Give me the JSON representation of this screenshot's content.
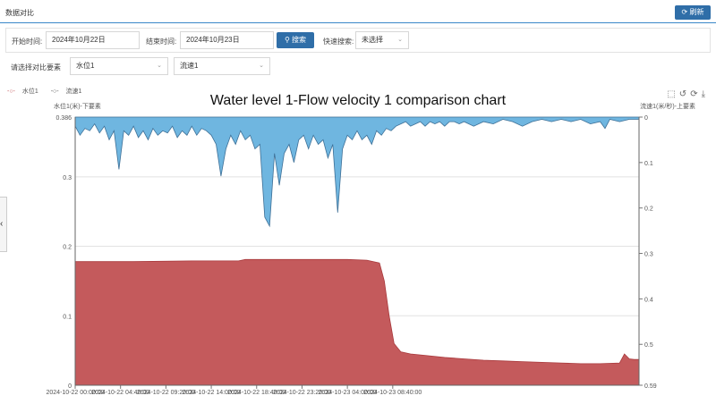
{
  "header": {
    "title": "数据对比",
    "refresh_label": "刷新"
  },
  "filters": {
    "start_label": "开始时间:",
    "start_value": "2024年10月22日",
    "end_label": "结束时间:",
    "end_value": "2024年10月23日",
    "search_label": "搜索",
    "quick_label": "快速搜索:",
    "quick_value": "未选择",
    "compare_label": "请选择对比要素",
    "element1": "水位1",
    "element2": "流速1"
  },
  "colors": {
    "blue_fill": "#6fb6e0",
    "red_fill": "#c45a5c",
    "accent": "#2f6ea8"
  },
  "icons": [
    "rect-select-icon",
    "restore-icon",
    "refresh-icon",
    "download-icon"
  ],
  "chart_data": {
    "type": "area",
    "title": "Water level 1-Flow velocity 1 comparison chart",
    "legend": [
      "水位1",
      "流速1"
    ],
    "left_axis": {
      "label": "水位1(米)-下要素",
      "ticks": [
        "0.386",
        "0.3",
        "0.2",
        "0.1",
        "0"
      ],
      "range": [
        0,
        0.386
      ]
    },
    "right_axis": {
      "label": "流速1(米/秒)-上要素",
      "ticks": [
        "0",
        "0.1",
        "0.2",
        "0.3",
        "0.4",
        "0.5",
        "0.59"
      ],
      "range": [
        0,
        0.59
      ],
      "inverted": true
    },
    "x_ticks": [
      "2024-10-22 00:00:00",
      "2024-10-22 04:40:00",
      "2024-10-22 09:20:00",
      "2024-10-22 14:00:00",
      "2024-10-22 18:40:00",
      "2024-10-22 23:20:00",
      "2024-10-23 04:00:00",
      "2024-10-23 08:40:00"
    ],
    "series": [
      {
        "name": "水位1",
        "values": [
          [
            0,
            0.178
          ],
          [
            6,
            0.178
          ],
          [
            12,
            0.179
          ],
          [
            16.8,
            0.179
          ],
          [
            17.5,
            0.181
          ],
          [
            21,
            0.181
          ],
          [
            28,
            0.181
          ],
          [
            30,
            0.18
          ],
          [
            31.3,
            0.176
          ],
          [
            31.8,
            0.15
          ],
          [
            32.3,
            0.1
          ],
          [
            32.8,
            0.06
          ],
          [
            33.5,
            0.048
          ],
          [
            34.5,
            0.045
          ],
          [
            36,
            0.043
          ],
          [
            38,
            0.04
          ],
          [
            40,
            0.038
          ],
          [
            42,
            0.036
          ],
          [
            44,
            0.035
          ],
          [
            46,
            0.034
          ],
          [
            48,
            0.033
          ],
          [
            50,
            0.032
          ],
          [
            52,
            0.031
          ],
          [
            54,
            0.031
          ],
          [
            56,
            0.032
          ],
          [
            56.5,
            0.045
          ],
          [
            57,
            0.038
          ],
          [
            57.5,
            0.037
          ],
          [
            58,
            0.037
          ]
        ]
      },
      {
        "name": "流速1",
        "values": [
          [
            0,
            0.02
          ],
          [
            0.5,
            0.04
          ],
          [
            1,
            0.025
          ],
          [
            1.5,
            0.03
          ],
          [
            2,
            0.015
          ],
          [
            2.5,
            0.035
          ],
          [
            3,
            0.02
          ],
          [
            3.5,
            0.05
          ],
          [
            4,
            0.03
          ],
          [
            4.5,
            0.115
          ],
          [
            5,
            0.03
          ],
          [
            5.5,
            0.04
          ],
          [
            6,
            0.02
          ],
          [
            6.5,
            0.045
          ],
          [
            7,
            0.03
          ],
          [
            7.5,
            0.05
          ],
          [
            8,
            0.025
          ],
          [
            8.5,
            0.04
          ],
          [
            9,
            0.03
          ],
          [
            9.5,
            0.035
          ],
          [
            10,
            0.02
          ],
          [
            10.5,
            0.045
          ],
          [
            11,
            0.03
          ],
          [
            11.5,
            0.04
          ],
          [
            12,
            0.02
          ],
          [
            12.5,
            0.04
          ],
          [
            13,
            0.025
          ],
          [
            13.5,
            0.03
          ],
          [
            14,
            0.04
          ],
          [
            14.5,
            0.06
          ],
          [
            15,
            0.13
          ],
          [
            15.5,
            0.07
          ],
          [
            16,
            0.04
          ],
          [
            16.5,
            0.06
          ],
          [
            17,
            0.03
          ],
          [
            17.5,
            0.05
          ],
          [
            18,
            0.04
          ],
          [
            18.5,
            0.07
          ],
          [
            19,
            0.06
          ],
          [
            19.5,
            0.22
          ],
          [
            20,
            0.24
          ],
          [
            20.5,
            0.08
          ],
          [
            21,
            0.15
          ],
          [
            21.5,
            0.08
          ],
          [
            22,
            0.06
          ],
          [
            22.5,
            0.1
          ],
          [
            23,
            0.05
          ],
          [
            23.5,
            0.04
          ],
          [
            24,
            0.07
          ],
          [
            24.5,
            0.04
          ],
          [
            25,
            0.06
          ],
          [
            25.5,
            0.05
          ],
          [
            26,
            0.09
          ],
          [
            26.5,
            0.06
          ],
          [
            27,
            0.21
          ],
          [
            27.5,
            0.07
          ],
          [
            28,
            0.04
          ],
          [
            28.5,
            0.05
          ],
          [
            29,
            0.03
          ],
          [
            29.5,
            0.05
          ],
          [
            30,
            0.04
          ],
          [
            30.5,
            0.06
          ],
          [
            31,
            0.03
          ],
          [
            31.5,
            0.04
          ],
          [
            32,
            0.025
          ],
          [
            32.5,
            0.03
          ],
          [
            33,
            0.02
          ],
          [
            33.5,
            0.015
          ],
          [
            34,
            0.01
          ],
          [
            34.5,
            0.02
          ],
          [
            35,
            0.015
          ],
          [
            35.5,
            0.01
          ],
          [
            36,
            0.02
          ],
          [
            36.5,
            0.01
          ],
          [
            37,
            0.015
          ],
          [
            37.5,
            0.01
          ],
          [
            38,
            0.02
          ],
          [
            38.5,
            0.01
          ],
          [
            39,
            0.01
          ],
          [
            39.5,
            0.015
          ],
          [
            40,
            0.01
          ],
          [
            41,
            0.02
          ],
          [
            42,
            0.01
          ],
          [
            43,
            0.015
          ],
          [
            44,
            0.005
          ],
          [
            45,
            0.01
          ],
          [
            46,
            0.02
          ],
          [
            47,
            0.01
          ],
          [
            48,
            0.005
          ],
          [
            49,
            0.01
          ],
          [
            50,
            0.005
          ],
          [
            51,
            0.01
          ],
          [
            52,
            0.005
          ],
          [
            53,
            0.015
          ],
          [
            54,
            0.01
          ],
          [
            54.5,
            0.025
          ],
          [
            55,
            0.005
          ],
          [
            56,
            0.01
          ],
          [
            57,
            0.005
          ],
          [
            58,
            0.005
          ]
        ]
      }
    ],
    "x_hours_range": [
      0,
      58
    ],
    "grid": true
  }
}
